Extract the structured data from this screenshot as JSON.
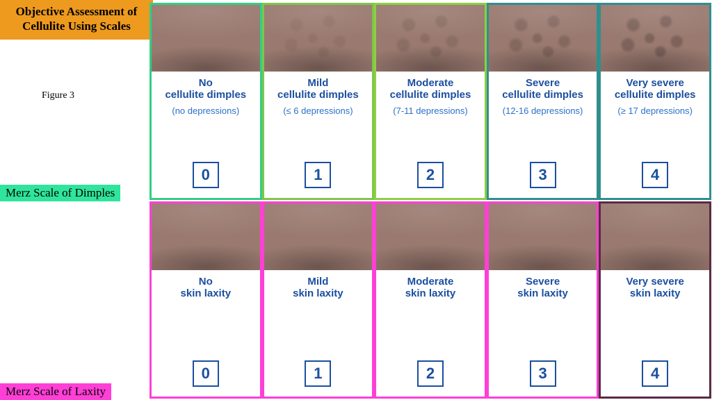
{
  "title": "Objective Assessment of Cellulite Using Scales",
  "title_bg": "#ed9a1f",
  "figure_label": "Figure 3",
  "text_colors": {
    "scale_label": "#1b4fa0",
    "scale_sub": "#2b71c8",
    "score_border": "#1b4fa0",
    "score_text": "#1b4fa0"
  },
  "rows": {
    "dimples": {
      "label": "Merz Scale of Dimples",
      "label_bg": "#2fe59b",
      "cards": [
        {
          "border": "#2fcf86",
          "line1": "No",
          "line2": "cellulite dimples",
          "sub": "(no depressions)",
          "score": "0",
          "dimple_level": 0
        },
        {
          "border": "#7fc64a",
          "line1": "Mild",
          "line2": "cellulite dimples",
          "sub": "(≤ 6 depressions)",
          "score": "1",
          "dimple_level": 1
        },
        {
          "border": "#8ecf41",
          "line1": "Moderate",
          "line2": "cellulite dimples",
          "sub": "(7-11 depressions)",
          "score": "2",
          "dimple_level": 2
        },
        {
          "border": "#2f8f8f",
          "line1": "Severe",
          "line2": "cellulite dimples",
          "sub": "(12-16 depressions)",
          "score": "3",
          "dimple_level": 3
        },
        {
          "border": "#2f8f8f",
          "line1": "Very severe",
          "line2": "cellulite dimples",
          "sub": "(≥ 17 depressions)",
          "score": "4",
          "dimple_level": 4
        }
      ]
    },
    "laxity": {
      "label": "Merz Scale of Laxity",
      "label_bg": "#ff3fd6",
      "cards": [
        {
          "border": "#ff3fd6",
          "line1": "No",
          "line2": "skin laxity",
          "sub": "",
          "score": "0",
          "dimple_level": 0
        },
        {
          "border": "#ff3fd6",
          "line1": "Mild",
          "line2": "skin laxity",
          "sub": "",
          "score": "1",
          "dimple_level": 0
        },
        {
          "border": "#ff3fd6",
          "line1": "Moderate",
          "line2": "skin laxity",
          "sub": "",
          "score": "2",
          "dimple_level": 0
        },
        {
          "border": "#ff3fd6",
          "line1": "Severe",
          "line2": "skin laxity",
          "sub": "",
          "score": "3",
          "dimple_level": 0
        },
        {
          "border": "#5a2a44",
          "line1": "Very severe",
          "line2": "skin laxity",
          "sub": "",
          "score": "4",
          "dimple_level": 0
        }
      ]
    }
  },
  "photo_base_color": "#9a7a70"
}
